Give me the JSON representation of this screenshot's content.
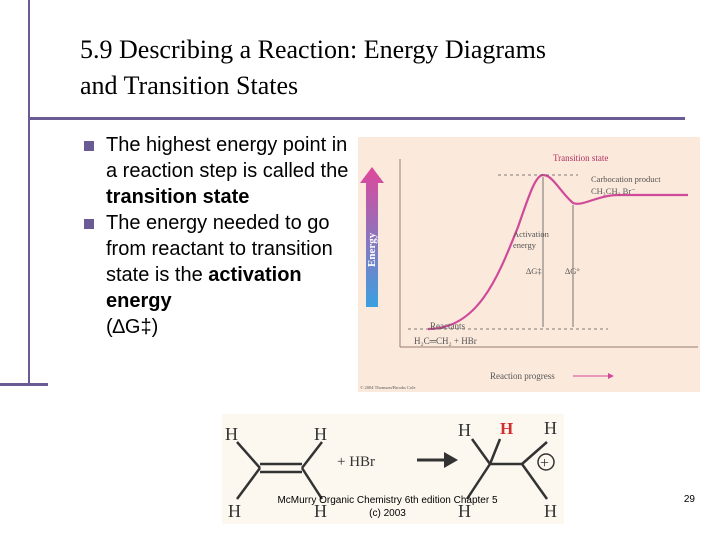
{
  "slide": {
    "title_line1": "5.9 Describing a Reaction: Energy Diagrams",
    "title_line2": "and Transition States",
    "bullet1_a": "The highest energy point in a reaction step is called the ",
    "bullet1_b": "transition state",
    "bullet2_a": "The energy needed to go from reactant to transition state is the ",
    "bullet2_b": "activation energy",
    "bullet2_c": "(∆G‡)",
    "footer_line1": "McMurry Organic Chemistry 6th edition Chapter 5",
    "footer_line2": "(c) 2003",
    "page_number": "29"
  },
  "energy_diagram": {
    "energy_axis_label": "Energy",
    "transition_state": "Transition state",
    "carbocation_product": "Carbocation product",
    "carbocation_formula": "CH₃CH₂ Br⁻",
    "activation_label1": "Activation",
    "activation_label2": "energy",
    "dg_double_dagger": "∆G‡",
    "dg_degree": "∆G°",
    "reactants": "Reactants",
    "reactants_formula": "H₂C═CH₂ + HBr",
    "x_axis_label": "Reaction progress",
    "copyright": "© 2004 Thomson/Brooks Cole",
    "colors": {
      "curve": "#d04a9a",
      "arrow_top": "#e0479a",
      "arrow_bottom": "#3aa0e0",
      "label_red": "#b03060"
    }
  },
  "reaction": {
    "reagent": "+ HBr",
    "h_atom": "H",
    "h_added": "H",
    "plus_charge": "+"
  }
}
